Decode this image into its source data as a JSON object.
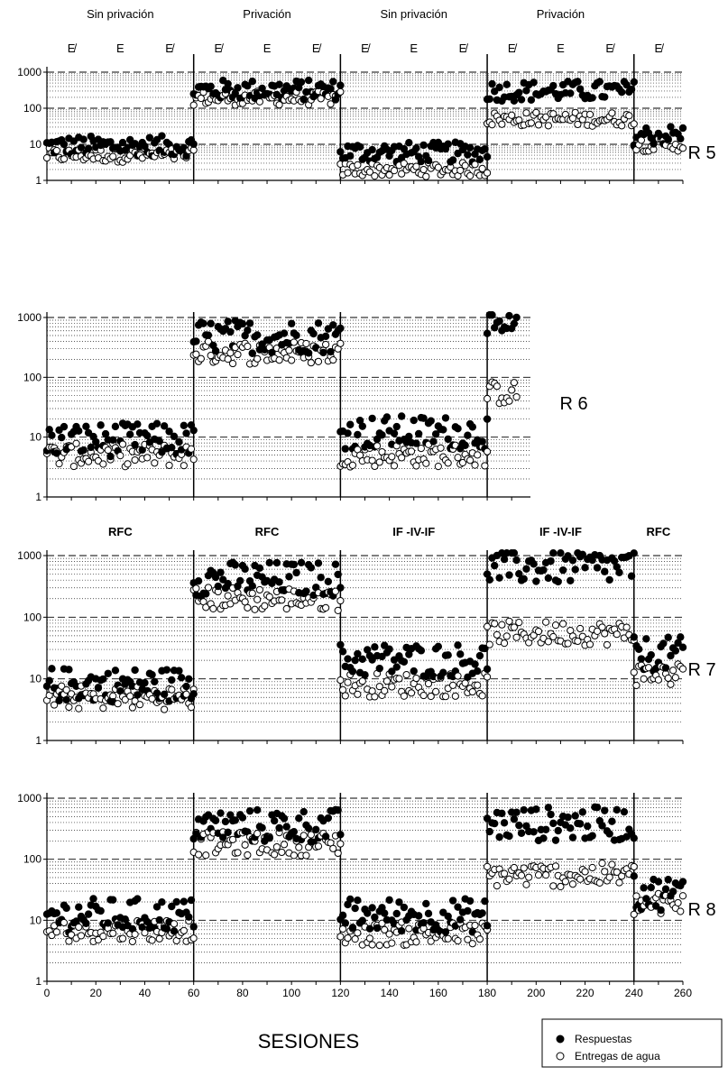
{
  "figure": {
    "xlabel": "SESIONES",
    "legend": {
      "responses": "Respuestas",
      "water": "Entregas de agua"
    }
  },
  "chart_data": [
    {
      "type": "scatter",
      "subject": "R 5",
      "condition_labels": [
        "Sin privación",
        "Privación",
        "Sin privación",
        "Privación"
      ],
      "phase_labels": [
        "E̸",
        "E",
        "E̸",
        "E̸",
        "E",
        "E̸",
        "E̸",
        "E",
        "E̸",
        "E̸",
        "E",
        "E̸",
        "E̸"
      ],
      "xlim": [
        0,
        260
      ],
      "ylim": [
        1,
        1000
      ],
      "yscale": "log",
      "yticks": [
        "1",
        "10",
        "100",
        "1000"
      ],
      "phase_boundaries": [
        60,
        120,
        180,
        240
      ],
      "segments": [
        {
          "x": [
            0,
            60
          ],
          "responses": 9,
          "water": 5
        },
        {
          "x": [
            60,
            120
          ],
          "responses": 320,
          "water": 190
        },
        {
          "x": [
            120,
            180
          ],
          "responses": 6,
          "water": 2
        },
        {
          "x": [
            180,
            240
          ],
          "responses": 300,
          "water": 50
        },
        {
          "x": [
            240,
            260
          ],
          "responses": 18,
          "water": 10
        }
      ]
    },
    {
      "type": "scatter",
      "subject": "R 6",
      "xlim": [
        0,
        260
      ],
      "ylim": [
        1,
        1000
      ],
      "yscale": "log",
      "yticks": [
        "1",
        "10",
        "100",
        "1000"
      ],
      "phase_boundaries": [
        60,
        120,
        180
      ],
      "segments": [
        {
          "x": [
            0,
            60
          ],
          "responses": 9,
          "water": 5
        },
        {
          "x": [
            60,
            120
          ],
          "responses": 480,
          "water": 260
        },
        {
          "x": [
            120,
            180
          ],
          "responses": 12,
          "water": 5
        },
        {
          "x": [
            180,
            192
          ],
          "responses": 600,
          "water": 55
        }
      ]
    },
    {
      "type": "scatter",
      "subject": "R 7",
      "condition_labels": [
        "RFC",
        "RFC",
        "IF -IV-IF",
        "IF -IV-IF",
        "RFC"
      ],
      "xlim": [
        0,
        260
      ],
      "ylim": [
        1,
        1000
      ],
      "yscale": "log",
      "yticks": [
        "1",
        "10",
        "100",
        "1000"
      ],
      "phase_boundaries": [
        60,
        120,
        180,
        240
      ],
      "segments": [
        {
          "x": [
            0,
            60
          ],
          "responses": 8,
          "water": 5
        },
        {
          "x": [
            60,
            120
          ],
          "responses": 420,
          "water": 200
        },
        {
          "x": [
            120,
            180
          ],
          "responses": 20,
          "water": 8
        },
        {
          "x": [
            180,
            240
          ],
          "responses": 650,
          "water": 55
        },
        {
          "x": [
            240,
            260
          ],
          "responses": 25,
          "water": 12
        }
      ]
    },
    {
      "type": "scatter",
      "subject": "R 8",
      "xlim": [
        0,
        260
      ],
      "ylim": [
        1,
        1000
      ],
      "yscale": "log",
      "yticks": [
        "1",
        "10",
        "100",
        "1000"
      ],
      "xticks": [
        "0",
        "20",
        "40",
        "60",
        "80",
        "100",
        "120",
        "140",
        "160",
        "180",
        "200",
        "220",
        "240",
        "260"
      ],
      "phase_boundaries": [
        60,
        120,
        180,
        240
      ],
      "segments": [
        {
          "x": [
            0,
            60
          ],
          "responses": 12,
          "water": 7
        },
        {
          "x": [
            60,
            120
          ],
          "responses": 350,
          "water": 180
        },
        {
          "x": [
            120,
            180
          ],
          "responses": 12,
          "water": 6
        },
        {
          "x": [
            180,
            240
          ],
          "responses": 380,
          "water": 55
        },
        {
          "x": [
            240,
            260
          ],
          "responses": 28,
          "water": 18
        }
      ]
    }
  ]
}
